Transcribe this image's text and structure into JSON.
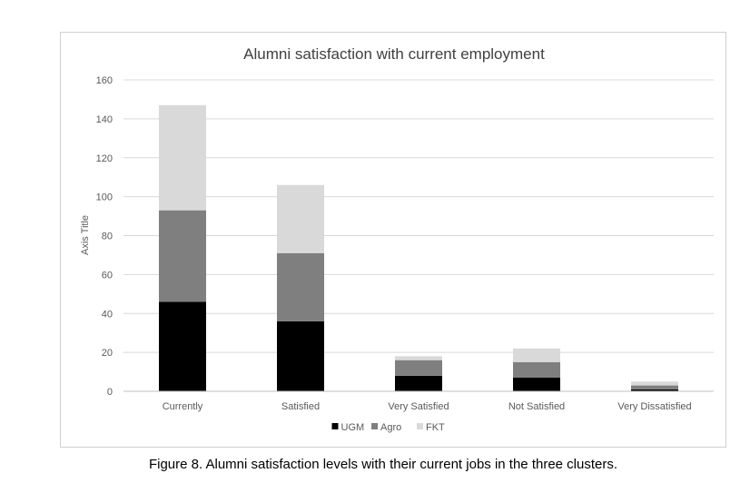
{
  "caption": "Figure 8. Alumni satisfaction levels with their current jobs in the three clusters.",
  "chart_data": {
    "type": "bar",
    "stacked": true,
    "title": "Alumni satisfaction with current employment",
    "xlabel": "",
    "ylabel": "Axis Title",
    "ylim": [
      0,
      160
    ],
    "yticks": [
      0,
      20,
      40,
      60,
      80,
      100,
      120,
      140,
      160
    ],
    "grid": true,
    "legend_position": "bottom",
    "categories": [
      "Currently",
      "Satisfied",
      "Very Satisfied",
      "Not Satisfied",
      "Very Dissatisfied"
    ],
    "series": [
      {
        "name": "UGM",
        "color": "#000000",
        "values": [
          46,
          36,
          8,
          7,
          1
        ]
      },
      {
        "name": "Agro",
        "color": "#7f7f7f",
        "values": [
          47,
          35,
          8,
          8,
          2
        ]
      },
      {
        "name": "FKT",
        "color": "#d9d9d9",
        "values": [
          54,
          35,
          2,
          7,
          2
        ]
      }
    ]
  }
}
